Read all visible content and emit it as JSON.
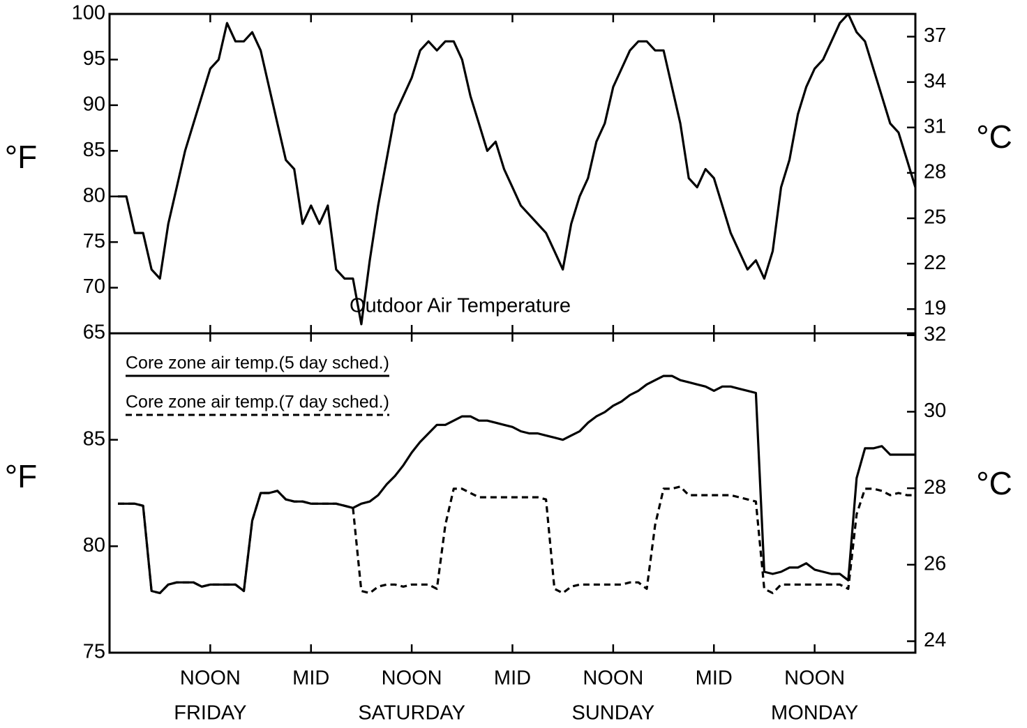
{
  "chart_data": [
    {
      "type": "line",
      "x": [
        1,
        2,
        3,
        4,
        5,
        6,
        7,
        8,
        9,
        10,
        11,
        12,
        13,
        14,
        15,
        16,
        17,
        18,
        19,
        20,
        21,
        22,
        23,
        24,
        25,
        26,
        27,
        28,
        29,
        30,
        31,
        32,
        33,
        34,
        35,
        36,
        37,
        38,
        39,
        40,
        41,
        42,
        43,
        44,
        45,
        46,
        47,
        48,
        49,
        50,
        51,
        52,
        53,
        54,
        55,
        56,
        57,
        58,
        59,
        60,
        61,
        62,
        63,
        64,
        65,
        66,
        67,
        68,
        69,
        70,
        71,
        72,
        73,
        74,
        75,
        76,
        77,
        78,
        79,
        80,
        81,
        82,
        83,
        84,
        85,
        86,
        87,
        88,
        89,
        90,
        91,
        92,
        93,
        94,
        95,
        96
      ],
      "series": [
        {
          "name": "Outdoor Air Temperature",
          "color": "#000000",
          "style": "solid",
          "values": [
            80,
            80,
            76,
            76,
            72,
            71,
            77,
            81,
            85,
            88,
            91,
            94,
            95,
            99,
            97,
            97,
            98,
            96,
            92,
            88,
            84,
            83,
            77,
            79,
            77,
            79,
            72,
            71,
            71,
            66,
            73,
            79,
            84,
            89,
            91,
            93,
            96,
            97,
            96,
            97,
            97,
            95,
            91,
            88,
            85,
            86,
            83,
            81,
            79,
            78,
            77,
            76,
            74,
            72,
            77,
            80,
            82,
            86,
            88,
            92,
            94,
            96,
            97,
            97,
            96,
            96,
            92,
            88,
            82,
            81,
            83,
            82,
            79,
            76,
            74,
            72,
            73,
            71,
            74,
            81,
            84,
            89,
            92,
            94,
            95,
            97,
            99,
            100,
            98,
            97,
            94,
            91,
            88,
            87,
            84,
            81
          ]
        }
      ],
      "legend": "lower center",
      "xlim": [
        0,
        96
      ],
      "xticks": [
        12,
        24,
        36,
        48,
        60,
        72,
        84
      ],
      "ylim": [
        65,
        100
      ],
      "yticks": [
        65,
        70,
        75,
        80,
        85,
        90,
        95,
        100
      ],
      "y2lim": [
        17.4,
        38.5
      ],
      "y2ticks": [
        19,
        22,
        25,
        28,
        31,
        34,
        37
      ],
      "ylabel": "°F",
      "y2label": "°C"
    },
    {
      "type": "line",
      "x": [
        1,
        2,
        3,
        4,
        5,
        6,
        7,
        8,
        9,
        10,
        11,
        12,
        13,
        14,
        15,
        16,
        17,
        18,
        19,
        20,
        21,
        22,
        23,
        24,
        25,
        26,
        27,
        28,
        29,
        30,
        31,
        32,
        33,
        34,
        35,
        36,
        37,
        38,
        39,
        40,
        41,
        42,
        43,
        44,
        45,
        46,
        47,
        48,
        49,
        50,
        51,
        52,
        53,
        54,
        55,
        56,
        57,
        58,
        59,
        60,
        61,
        62,
        63,
        64,
        65,
        66,
        67,
        68,
        69,
        70,
        71,
        72,
        73,
        74,
        75,
        76,
        77,
        78,
        79,
        80,
        81,
        82,
        83,
        84,
        85,
        86,
        87,
        88,
        89,
        90,
        91,
        92,
        93,
        94,
        95,
        96
      ],
      "series": [
        {
          "name": "Core zone air temp.(5 day sched.)",
          "color": "#000000",
          "style": "solid",
          "values": [
            82,
            82,
            82,
            81.9,
            77.9,
            77.8,
            78.2,
            78.3,
            78.3,
            78.3,
            78.1,
            78.2,
            78.2,
            78.2,
            78.2,
            77.9,
            81.2,
            82.5,
            82.5,
            82.6,
            82.2,
            82.1,
            82.1,
            82,
            82,
            82,
            82,
            81.9,
            81.8,
            82,
            82.1,
            82.4,
            82.9,
            83.3,
            83.8,
            84.4,
            84.9,
            85.3,
            85.7,
            85.7,
            85.9,
            86.1,
            86.1,
            85.9,
            85.9,
            85.8,
            85.7,
            85.6,
            85.4,
            85.3,
            85.3,
            85.2,
            85.1,
            85,
            85.2,
            85.4,
            85.8,
            86.1,
            86.3,
            86.6,
            86.8,
            87.1,
            87.3,
            87.6,
            87.8,
            88,
            88,
            87.8,
            87.7,
            87.6,
            87.5,
            87.3,
            87.5,
            87.5,
            87.4,
            87.3,
            87.2,
            78.8,
            78.7,
            78.8,
            79,
            79,
            79.2,
            78.9,
            78.8,
            78.7,
            78.7,
            78.4,
            83.2,
            84.6,
            84.6,
            84.7,
            84.3,
            84.3,
            84.3,
            84.3
          ]
        },
        {
          "name": "Core zone air temp.(7 day sched.)",
          "color": "#000000",
          "style": "dashed",
          "values": [
            82,
            82,
            82,
            81.9,
            77.9,
            77.8,
            78.2,
            78.3,
            78.3,
            78.3,
            78.1,
            78.2,
            78.2,
            78.2,
            78.2,
            77.9,
            81.2,
            82.5,
            82.5,
            82.6,
            82.2,
            82.1,
            82.1,
            82,
            82,
            82,
            82,
            81.9,
            81.8,
            77.9,
            77.8,
            78.1,
            78.2,
            78.2,
            78.1,
            78.2,
            78.2,
            78.2,
            78,
            81,
            82.7,
            82.7,
            82.5,
            82.3,
            82.3,
            82.3,
            82.3,
            82.3,
            82.3,
            82.3,
            82.3,
            82.2,
            78,
            77.8,
            78.1,
            78.2,
            78.2,
            78.2,
            78.2,
            78.2,
            78.2,
            78.3,
            78.3,
            78,
            81,
            82.7,
            82.7,
            82.8,
            82.4,
            82.4,
            82.4,
            82.4,
            82.4,
            82.4,
            82.3,
            82.2,
            82.1,
            78,
            77.8,
            78.2,
            78.2,
            78.2,
            78.2,
            78.2,
            78.2,
            78.2,
            78.2,
            78,
            81.5,
            82.7,
            82.7,
            82.6,
            82.4,
            82.5,
            82.4,
            82.4
          ]
        }
      ],
      "legend": "upper left",
      "xlim": [
        0,
        96
      ],
      "xticks": [
        {
          "value": 12,
          "label": "NOON"
        },
        {
          "value": 24,
          "label": "MID"
        },
        {
          "value": 36,
          "label": "NOON"
        },
        {
          "value": 48,
          "label": "MID"
        },
        {
          "value": 60,
          "label": "NOON"
        },
        {
          "value": 72,
          "label": "MID"
        },
        {
          "value": 84,
          "label": "NOON"
        }
      ],
      "day_labels": [
        {
          "value": 12,
          "label": "FRIDAY"
        },
        {
          "value": 36,
          "label": "SATURDAY"
        },
        {
          "value": 60,
          "label": "SUNDAY"
        },
        {
          "value": 84,
          "label": "MONDAY"
        }
      ],
      "ylim": [
        75,
        90
      ],
      "yticks": [
        75,
        80,
        85
      ],
      "y2lim": [
        23.7,
        32.05
      ],
      "y2ticks": [
        24,
        26,
        28,
        30,
        32
      ],
      "ylabel": "°F",
      "y2label": "°C"
    }
  ]
}
